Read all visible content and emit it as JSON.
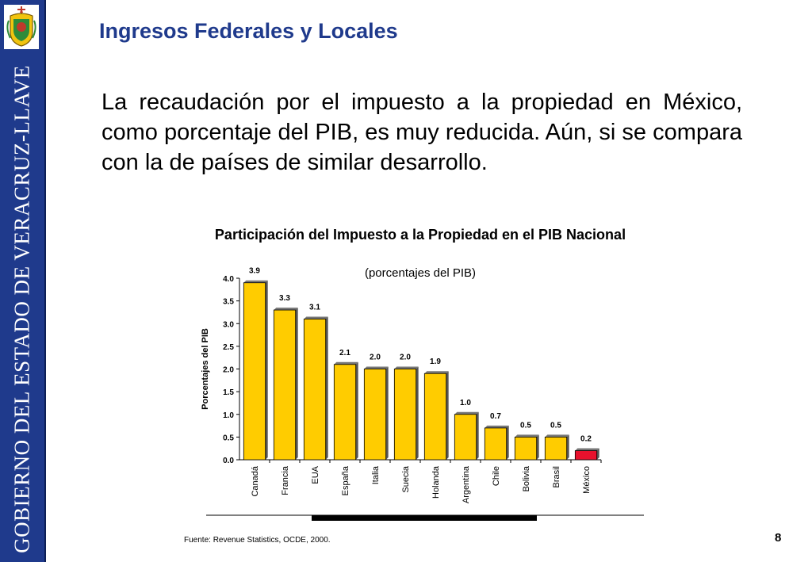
{
  "sidebar": {
    "text": "GOBIERNO DEL ESTADO DE VERACRUZ-LLAVE",
    "crest_icon": "coat-of-arms-icon"
  },
  "slide": {
    "title": "Ingresos Federales y Locales",
    "body": "La recaudación por el impuesto a la propiedad en México, como porcentaje del PIB, es muy reducida. Aún, si se compara con la de países de similar desarrollo.",
    "source": "Fuente: Revenue Statistics, OCDE, 2000.",
    "page_number": "8"
  },
  "colors": {
    "banner": "#1f3a8c",
    "title": "#1f3a8c",
    "bar": "#ffcc00",
    "highlight_bar": "#e8112d"
  },
  "chart_data": {
    "type": "bar",
    "title": "Participación del Impuesto a la Propiedad en el PIB Nacional",
    "subtitle": "(porcentajes del PIB)",
    "ylabel": "Porcentajes del PIB",
    "xlabel": "",
    "ylim": [
      0,
      4.0
    ],
    "yticks": [
      "0.0",
      "0.5",
      "1.0",
      "1.5",
      "2.0",
      "2.5",
      "3.0",
      "3.5",
      "4.0"
    ],
    "grid": false,
    "categories": [
      "Canadá",
      "Francia",
      "EUA",
      "España",
      "Italia",
      "Suecia",
      "Holanda",
      "Argentina",
      "Chile",
      "Bolivia",
      "Brasil",
      "México"
    ],
    "values": [
      3.9,
      3.3,
      3.1,
      2.1,
      2.0,
      2.0,
      1.9,
      1.0,
      0.7,
      0.5,
      0.5,
      0.2
    ],
    "data_labels": [
      "3.9",
      "3.3",
      "3.1",
      "2.1",
      "2.0",
      "2.0",
      "1.9",
      "1.0",
      "0.7",
      "0.5",
      "0.5",
      "0.2"
    ],
    "highlight": "México"
  }
}
